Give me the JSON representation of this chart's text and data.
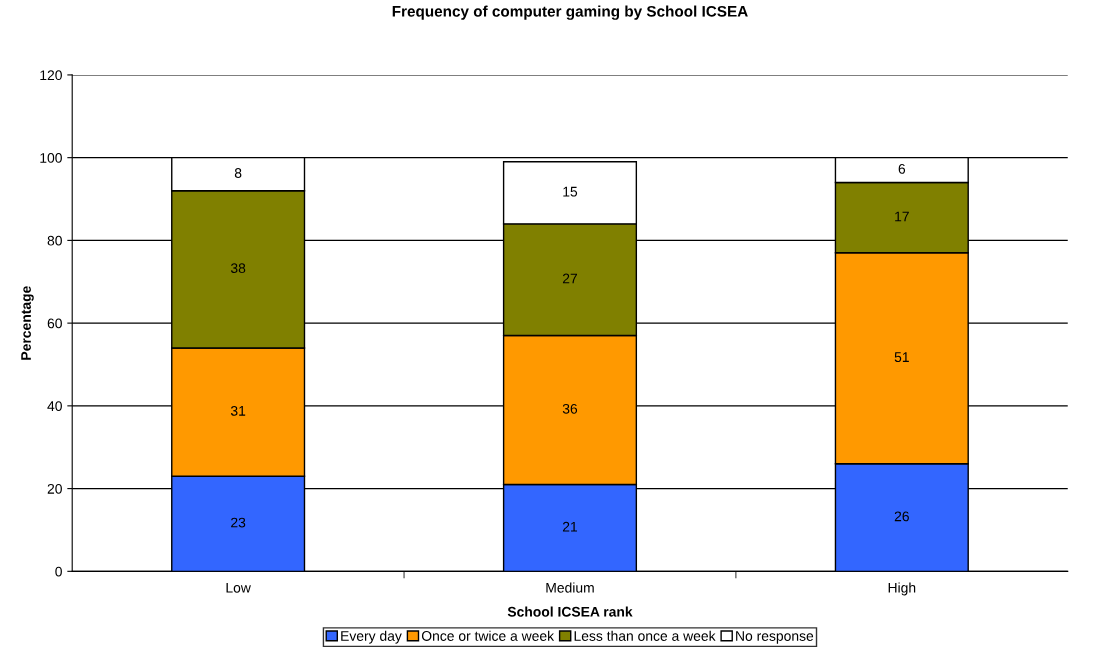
{
  "chart_data": {
    "type": "bar",
    "title": "Frequency of computer gaming by School ICSEA",
    "xlabel": "School ICSEA rank",
    "ylabel": "Percentage",
    "categories": [
      "Low",
      "Medium",
      "High"
    ],
    "series": [
      {
        "name": "Every day",
        "color": "#3366ff",
        "values": [
          23,
          21,
          26
        ]
      },
      {
        "name": "Once or twice a week",
        "color": "#ff9900",
        "values": [
          31,
          36,
          51
        ]
      },
      {
        "name": "Less than once a week",
        "color": "#808000",
        "values": [
          38,
          27,
          17
        ]
      },
      {
        "name": "No response",
        "color": "#ffffff",
        "values": [
          8,
          15,
          6
        ]
      }
    ],
    "stacked": true,
    "ylim": [
      0,
      120
    ],
    "yticks": [
      0,
      20,
      40,
      60,
      80,
      100,
      120
    ],
    "grid": "y",
    "legend": "bottom",
    "data_labels": true
  }
}
